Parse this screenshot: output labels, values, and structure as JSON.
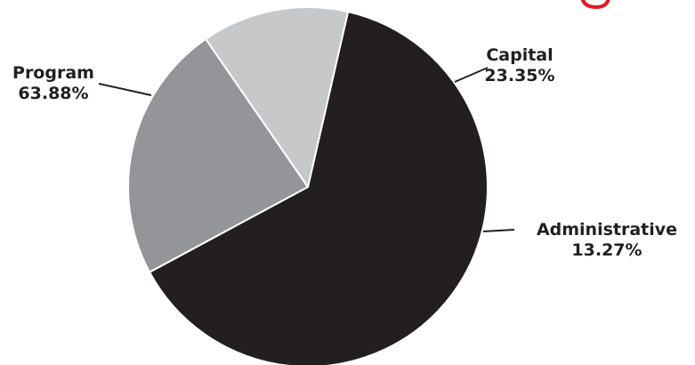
{
  "chart_data": {
    "type": "pie",
    "title": "",
    "slices": [
      {
        "label": "Program",
        "value": 63.88,
        "value_label": "63.88%",
        "color": "#231f20"
      },
      {
        "label": "Capital",
        "value": 23.35,
        "value_label": "23.35%",
        "color": "#939598"
      },
      {
        "label": "Administrative",
        "value": 13.27,
        "value_label": "13.27%",
        "color": "#c7c8ca"
      }
    ],
    "start_angle_deg": 12.9,
    "direction": "clockwise",
    "legend": "none",
    "labels": "outside-with-leader-lines"
  },
  "colors": {
    "stroke": "#ffffff",
    "text": "#231f20",
    "accent_mark": "#e31b23"
  }
}
